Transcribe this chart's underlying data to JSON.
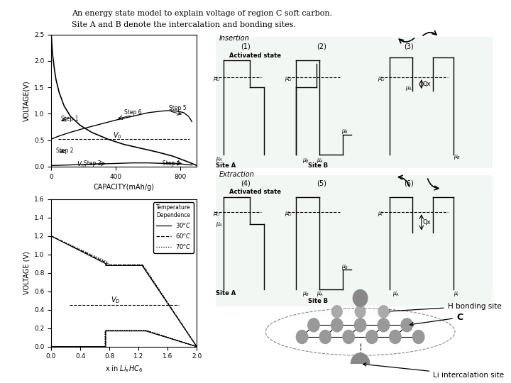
{
  "title_line1": "An energy state model to explain voltage of region C soft carbon.",
  "title_line2": "Site A and B denote the intercalation and bonding sites.",
  "bg_color": "#ffffff",
  "text_color": "#000000",
  "graph1": {
    "xlabel": "CAPACITY(mAh/g)",
    "ylabel": "VOLTAGE(V)",
    "ylim": [
      0.0,
      2.5
    ],
    "xlim": [
      0,
      900
    ],
    "yticks": [
      0.0,
      0.5,
      1.0,
      1.5,
      2.0,
      2.5
    ],
    "xticks": [
      0,
      400,
      800
    ]
  },
  "graph2": {
    "xlabel": "x in Li_xHC_6",
    "ylabel": "VOLTAGE (V)",
    "ylim": [
      0.0,
      1.6
    ],
    "xlim": [
      0.0,
      2.0
    ],
    "yticks": [
      0.0,
      0.2,
      0.4,
      0.6,
      0.8,
      1.0,
      1.2,
      1.4,
      1.6
    ],
    "xticks": [
      0.0,
      0.4,
      0.8,
      1.2,
      1.6,
      2.0
    ]
  }
}
